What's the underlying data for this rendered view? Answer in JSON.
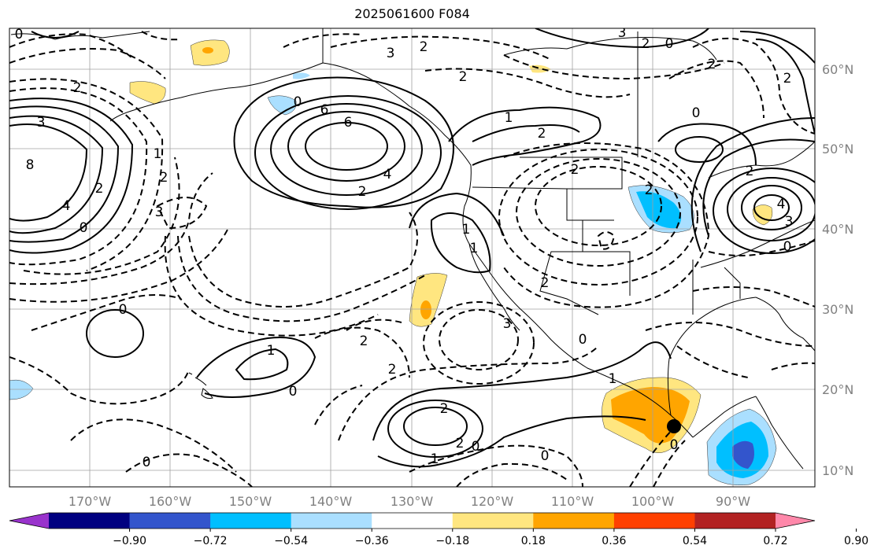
{
  "title": "2025061600 F084",
  "latitude_labels": [
    "60°N",
    "50°N",
    "40°N",
    "30°N",
    "20°N",
    "10°N"
  ],
  "longitude_labels": [
    "170°W",
    "160°W",
    "150°W",
    "140°W",
    "130°W",
    "120°W",
    "110°W",
    "100°W",
    "90°W"
  ],
  "colorbar": {
    "ticks": [
      "−0.90",
      "−0.72",
      "−0.54",
      "−0.36",
      "−0.18",
      "0.18",
      "0.36",
      "0.54",
      "0.72",
      "0.90"
    ],
    "colors": [
      "#9933cc",
      "#000080",
      "#3355cc",
      "#00bfff",
      "#aadfff",
      "#ffffff",
      "#ffe680",
      "#ffa500",
      "#ff4000",
      "#b22222",
      "#ff88aa"
    ]
  },
  "contour_labels": [
    "0",
    "2",
    "3",
    "6",
    "8",
    "4",
    "2",
    "2",
    "0",
    "1",
    "3",
    "6",
    "4",
    "2",
    "0",
    "3",
    "2",
    "2",
    "3",
    "0",
    "2",
    "1",
    "2",
    "4",
    "3",
    "1",
    "2",
    "2",
    "0",
    "2",
    "1",
    "0",
    "0",
    "1",
    "2",
    "2",
    "2",
    "1",
    "2",
    "0",
    "0",
    "0",
    "3",
    "2",
    "2",
    "1",
    "2",
    "0",
    "0"
  ],
  "marker": "storm-center"
}
